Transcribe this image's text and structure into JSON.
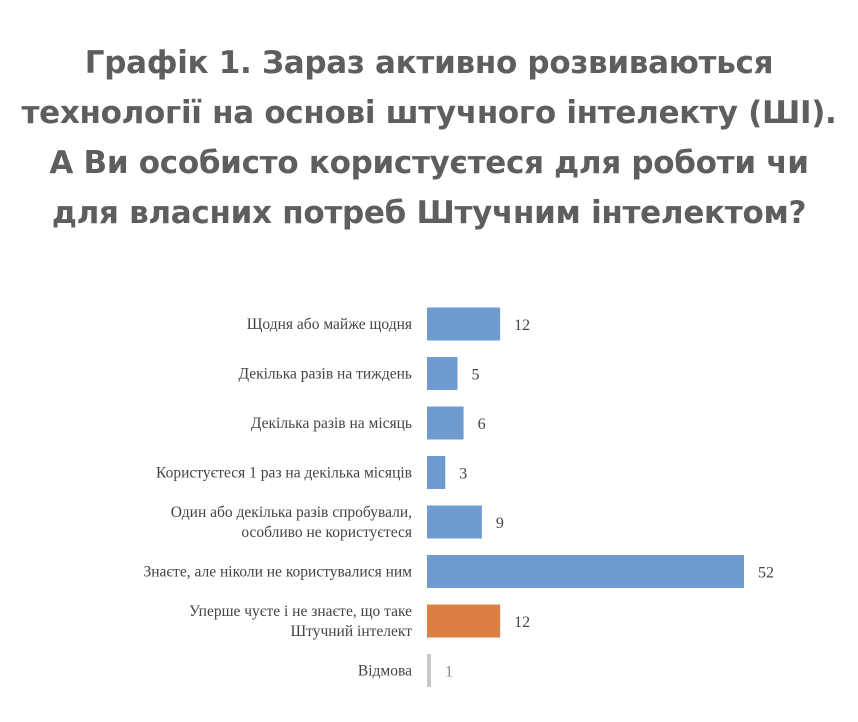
{
  "chart_data": {
    "type": "bar",
    "orientation": "horizontal",
    "title_lines": [
      "Графік 1. Зараз активно розвиваються",
      "технології на основі штучного інтелекту (ШІ).",
      "А Ви особисто користуєтеся для роботи чи",
      "для власних потреб Штучним інтелектом?"
    ],
    "categories": [
      [
        "Щодня або майже щодня"
      ],
      [
        "Декілька разів на тиждень"
      ],
      [
        "Декілька разів на місяць"
      ],
      [
        "Користуєтеся 1 раз на декілька місяців"
      ],
      [
        "Один або декілька разів спробували,",
        "особливо не користуєтеся"
      ],
      [
        "Знаєте, але ніколи не користувалися ним"
      ],
      [
        "Уперше чуєте і не знаєте, що таке",
        "Штучний інтелект"
      ],
      [
        "Відмова"
      ]
    ],
    "values": [
      12,
      5,
      6,
      3,
      9,
      52,
      12,
      1
    ],
    "colors": [
      "#6f9bd1",
      "#6f9bd1",
      "#6f9bd1",
      "#6f9bd1",
      "#6f9bd1",
      "#6f9bd1",
      "#dc7f42",
      "#c8c8c8"
    ],
    "value_label_colors": [
      "#444444",
      "#444444",
      "#444444",
      "#444444",
      "#444444",
      "#444444",
      "#444444",
      "#8a8a8a"
    ],
    "xlim": [
      0,
      52
    ],
    "grid": false,
    "legend": "none"
  }
}
